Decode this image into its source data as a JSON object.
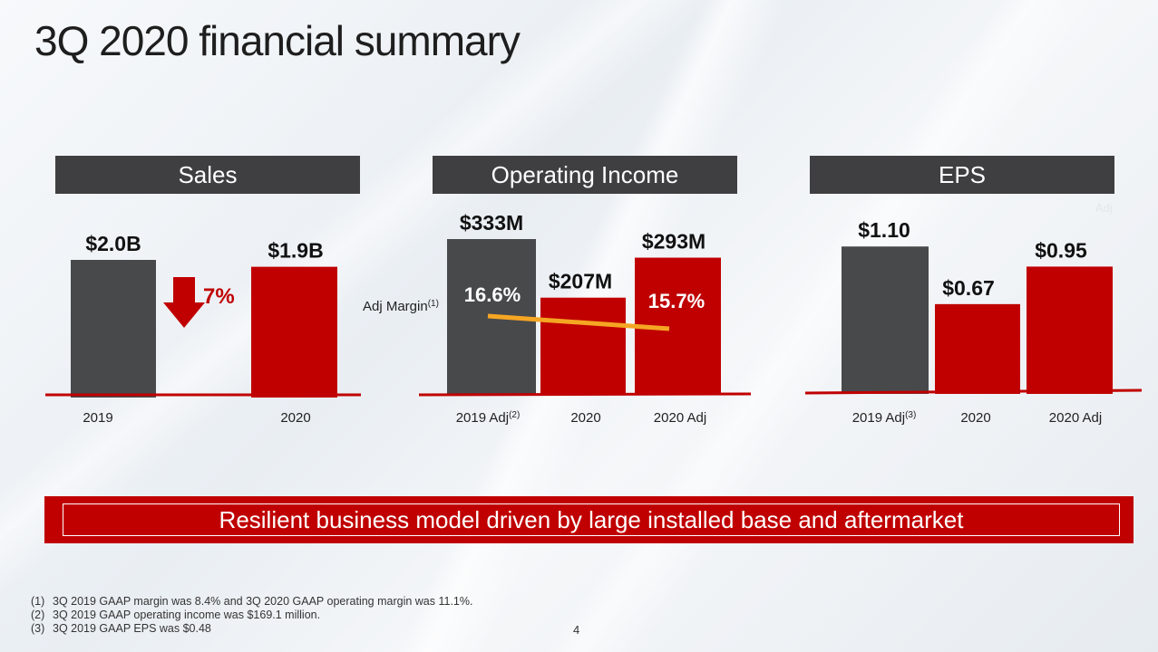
{
  "title": "3Q 2020 financial summary",
  "panels": {
    "sales": "Sales",
    "operating_income": "Operating Income",
    "eps": "EPS"
  },
  "faint_label": "Adj",
  "colors": {
    "red": "#c00000",
    "gray": "#48494b",
    "margin_line": "#f5a623",
    "header": "#3f3f41"
  },
  "chart_data": [
    {
      "type": "bar",
      "title": "Sales",
      "categories": [
        "2019",
        "2020"
      ],
      "values": [
        2.0,
        1.9
      ],
      "value_labels": [
        "$2.0B",
        "$1.9B"
      ],
      "unit": "$B",
      "annotation": {
        "icon": "down-arrow-icon",
        "text": "7%"
      }
    },
    {
      "type": "bar",
      "title": "Operating Income",
      "categories": [
        "2019 Adj",
        "2020",
        "2020 Adj"
      ],
      "category_superscripts": [
        "(2)",
        "",
        ""
      ],
      "values": [
        333,
        207,
        293
      ],
      "value_labels": [
        "$333M",
        "$207M",
        "$293M"
      ],
      "unit": "$M",
      "margin": {
        "label": "Adj Margin",
        "label_superscript": "(1)",
        "values": [
          16.6,
          15.7
        ],
        "value_labels": [
          "16.6%",
          "15.7%"
        ]
      }
    },
    {
      "type": "bar",
      "title": "EPS",
      "categories": [
        "2019 Adj",
        "2020",
        "2020 Adj"
      ],
      "category_superscripts": [
        "(3)",
        "",
        ""
      ],
      "values": [
        1.1,
        0.67,
        0.95
      ],
      "value_labels": [
        "$1.10",
        "$0.67",
        "$0.95"
      ],
      "unit": "$"
    }
  ],
  "banner": "Resilient business model driven by large installed base and aftermarket",
  "footnotes": [
    {
      "num": "(1)",
      "text": "3Q 2019 GAAP margin was 8.4% and 3Q 2020 GAAP operating margin was 11.1%."
    },
    {
      "num": "(2)",
      "text": "3Q 2019 GAAP operating income was $169.1 million."
    },
    {
      "num": "(3)",
      "text": "3Q 2019 GAAP EPS was $0.48"
    }
  ],
  "page_number": "4"
}
